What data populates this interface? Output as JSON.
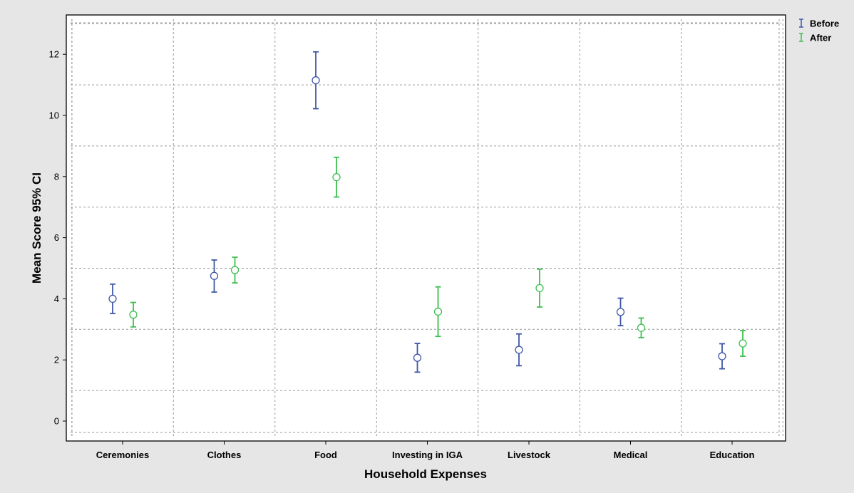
{
  "chart_data": {
    "type": "errorbar",
    "title": "",
    "xlabel": "Household Expenses",
    "ylabel": "Mean Score 95% CI",
    "ylim": [
      -0.6,
      13.1
    ],
    "yticks": [
      0,
      2,
      4,
      6,
      8,
      10,
      12
    ],
    "grid": true,
    "legend_position": "top-right",
    "categories": [
      "Ceremonies",
      "Clothes",
      "Food",
      "Investing in IGA",
      "Livestock",
      "Medical",
      "Education"
    ],
    "series": [
      {
        "name": "Before",
        "color": "#3f57a6",
        "mean": [
          4.0,
          4.75,
          11.15,
          2.07,
          2.33,
          3.57,
          2.12
        ],
        "lower": [
          3.52,
          4.22,
          10.22,
          1.6,
          1.81,
          3.12,
          1.71
        ],
        "upper": [
          4.48,
          5.27,
          12.08,
          2.54,
          2.85,
          4.02,
          2.53
        ]
      },
      {
        "name": "After",
        "color": "#3cbf4f",
        "mean": [
          3.48,
          4.94,
          7.98,
          3.58,
          4.35,
          3.05,
          2.54
        ],
        "lower": [
          3.08,
          4.52,
          7.33,
          2.77,
          3.73,
          2.73,
          2.12
        ],
        "upper": [
          3.88,
          5.36,
          8.63,
          4.39,
          4.97,
          3.37,
          2.96
        ]
      }
    ]
  }
}
